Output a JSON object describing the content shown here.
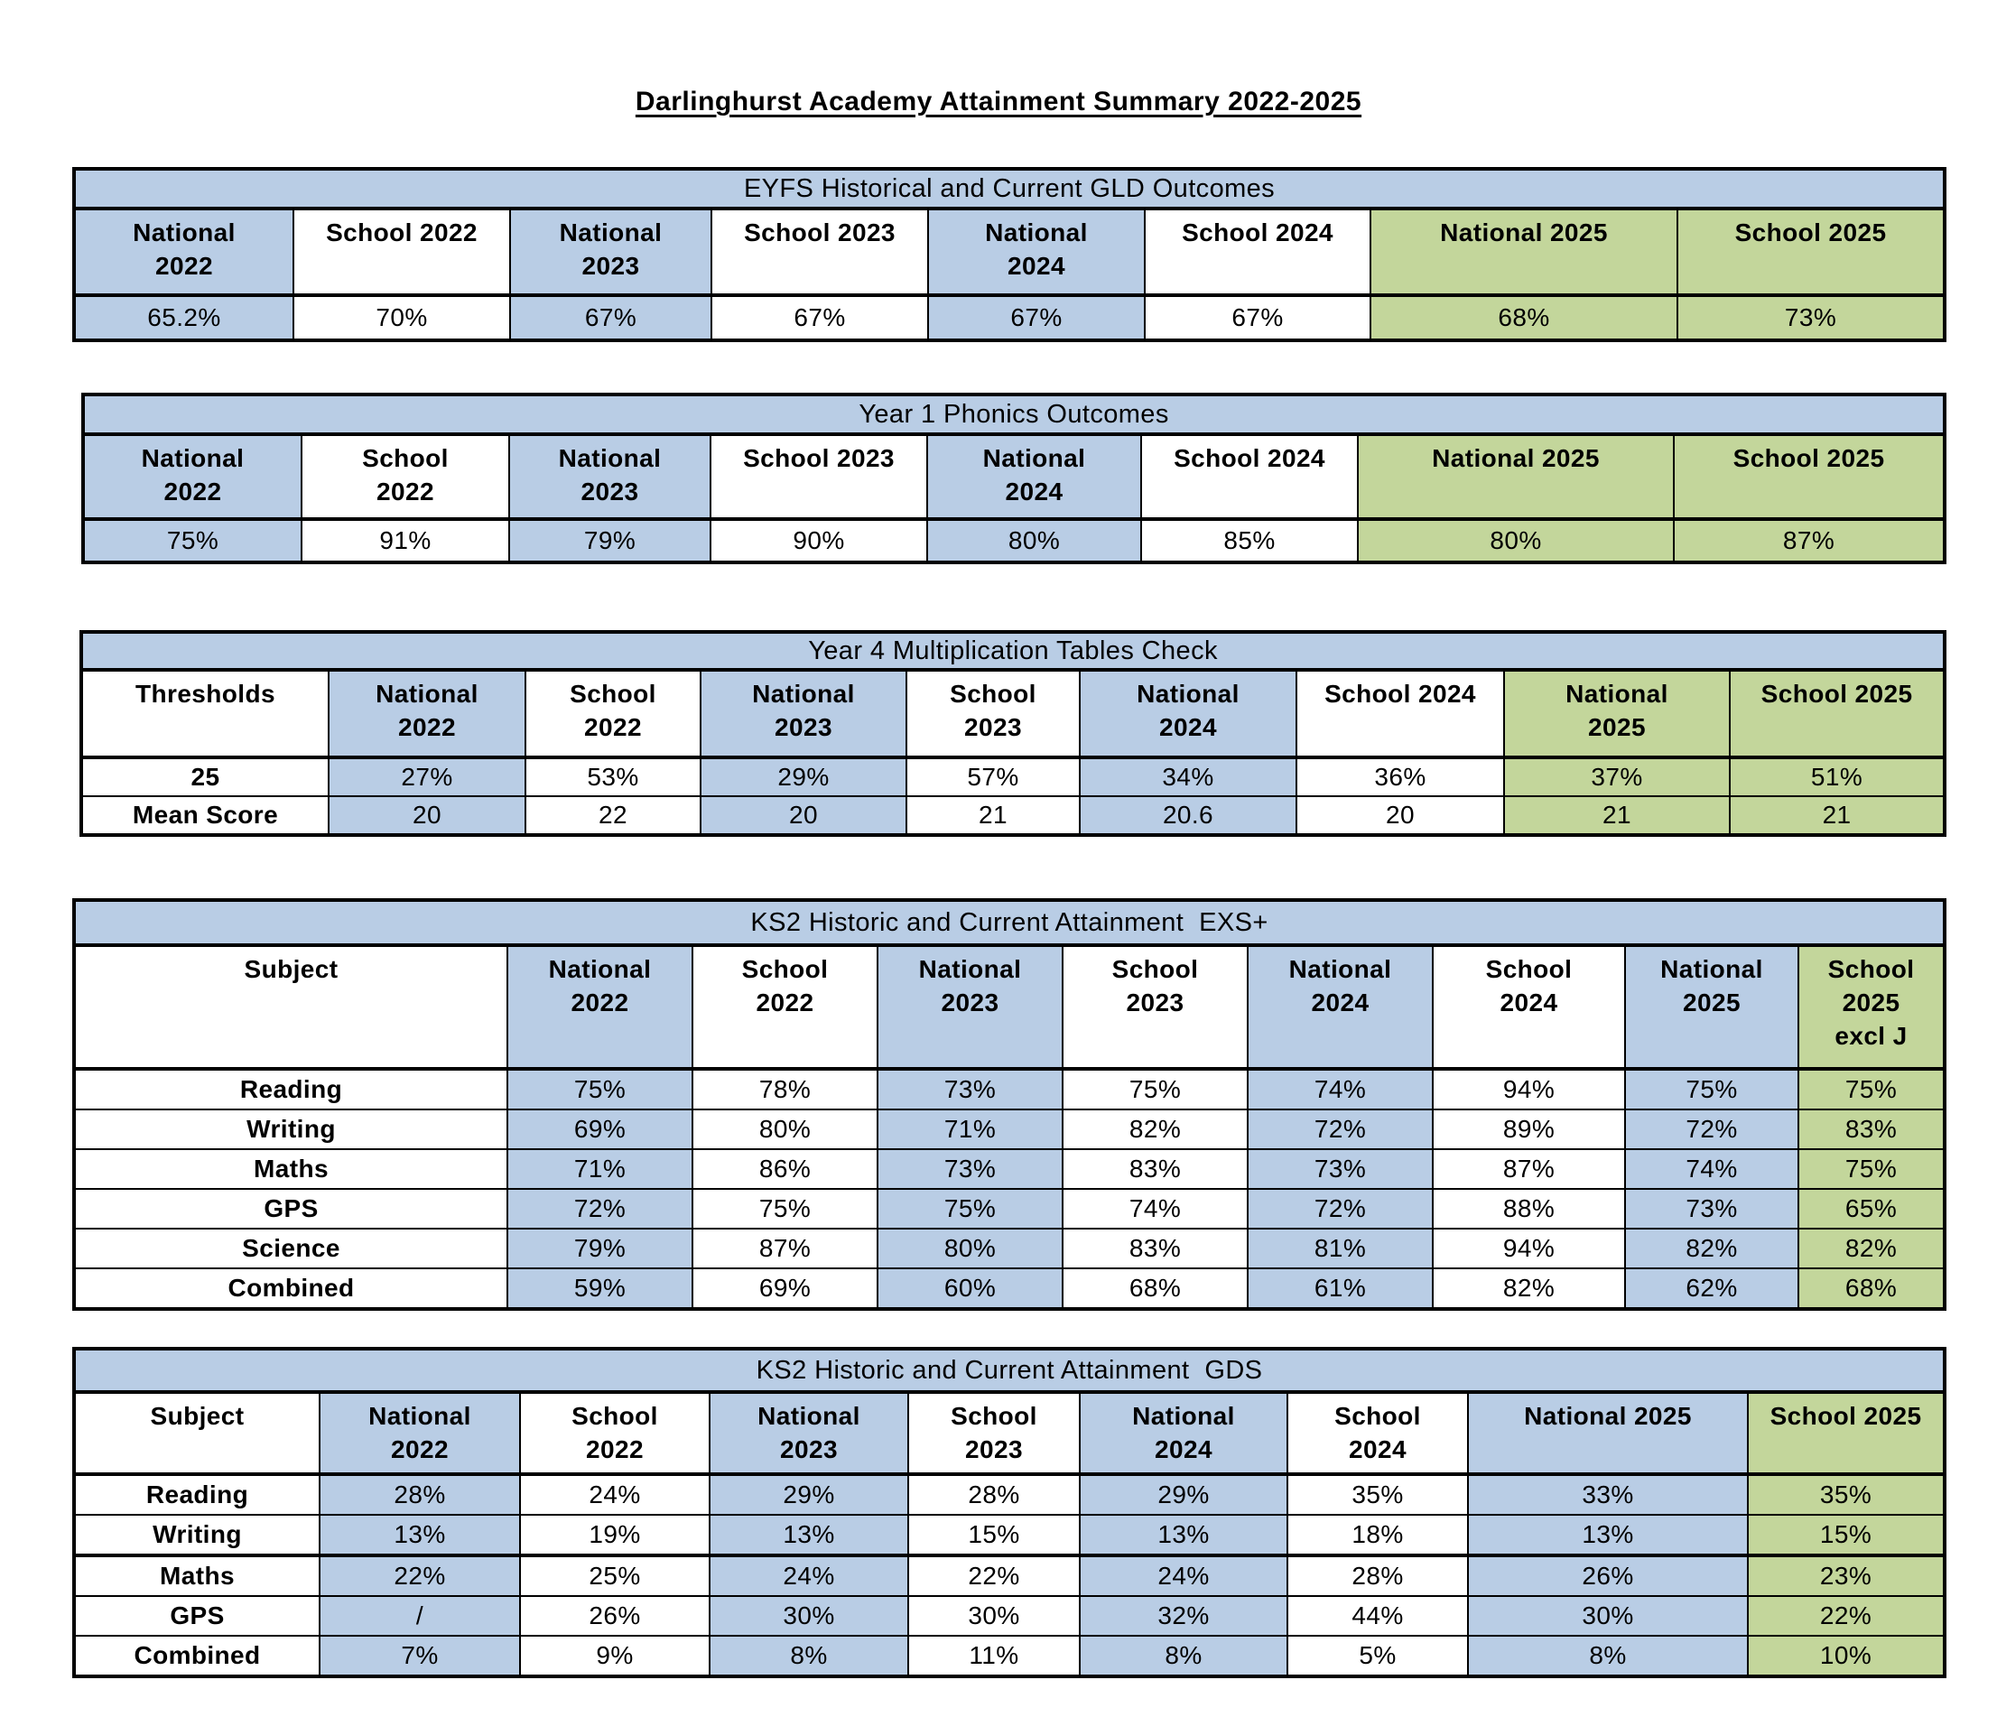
{
  "page": {
    "title": "Darlinghurst Academy Attainment Summary 2022-2025"
  },
  "colors": {
    "blue": "#B9CDE5",
    "green": "#C3D69B",
    "white": "#FFFFFF",
    "border": "#000000"
  },
  "tables": [
    {
      "name": "eyfs-gld",
      "title": "EYFS Historical and Current GLD Outcomes",
      "columns": [
        {
          "label": "National\n2022",
          "bg": "blue"
        },
        {
          "label": "School 2022",
          "bg": "white"
        },
        {
          "label": "National\n2023",
          "bg": "blue"
        },
        {
          "label": "School 2023",
          "bg": "white"
        },
        {
          "label": "National\n2024",
          "bg": "blue"
        },
        {
          "label": "School 2024",
          "bg": "white"
        },
        {
          "label": "National 2025",
          "bg": "green"
        },
        {
          "label": "School 2025",
          "bg": "green"
        }
      ],
      "rows": [
        {
          "cells": [
            "65.2%",
            "70%",
            "67%",
            "67%",
            "67%",
            "67%",
            "68%",
            "73%"
          ]
        }
      ]
    },
    {
      "name": "year1-phonics",
      "title": "Year 1 Phonics Outcomes",
      "columns": [
        {
          "label": "National\n2022",
          "bg": "blue"
        },
        {
          "label": "School\n2022",
          "bg": "white"
        },
        {
          "label": "National\n2023",
          "bg": "blue"
        },
        {
          "label": "School 2023",
          "bg": "white"
        },
        {
          "label": "National\n2024",
          "bg": "blue"
        },
        {
          "label": "School 2024",
          "bg": "white"
        },
        {
          "label": "National 2025",
          "bg": "green"
        },
        {
          "label": "School 2025",
          "bg": "green"
        }
      ],
      "rows": [
        {
          "cells": [
            "75%",
            "91%",
            "79%",
            "90%",
            "80%",
            "85%",
            "80%",
            "87%"
          ]
        }
      ]
    },
    {
      "name": "year4-multiplication-tables-check",
      "title": "Year 4 Multiplication Tables Check",
      "columns": [
        {
          "label": "Thresholds",
          "bg": "white",
          "is_label": true
        },
        {
          "label": "National\n2022",
          "bg": "blue"
        },
        {
          "label": "School\n2022",
          "bg": "white"
        },
        {
          "label": "National\n2023",
          "bg": "blue"
        },
        {
          "label": "School\n2023",
          "bg": "white"
        },
        {
          "label": "National\n2024",
          "bg": "blue"
        },
        {
          "label": "School 2024",
          "bg": "white"
        },
        {
          "label": "National\n2025",
          "bg": "green"
        },
        {
          "label": "School 2025",
          "bg": "green"
        }
      ],
      "rows": [
        {
          "cells": [
            "25",
            "27%",
            "53%",
            "29%",
            "57%",
            "34%",
            "36%",
            "37%",
            "51%"
          ]
        },
        {
          "cells": [
            "Mean Score",
            "20",
            "22",
            "20",
            "21",
            "20.6",
            "20",
            "21",
            "21"
          ]
        }
      ]
    },
    {
      "name": "ks2-attainment-exs",
      "title": "KS2 Historic and Current Attainment  EXS+",
      "columns": [
        {
          "label": "Subject",
          "bg": "white",
          "is_label": true
        },
        {
          "label": "National\n2022",
          "bg": "blue"
        },
        {
          "label": "School\n2022",
          "bg": "white"
        },
        {
          "label": "National\n2023",
          "bg": "blue"
        },
        {
          "label": "School\n2023",
          "bg": "white"
        },
        {
          "label": "National\n2024",
          "bg": "blue"
        },
        {
          "label": "School\n2024",
          "bg": "white"
        },
        {
          "label": "National\n2025",
          "bg": "blue"
        },
        {
          "label": "School\n2025\nexcl J",
          "bg": "green"
        }
      ],
      "rows": [
        {
          "cells": [
            "Reading",
            "75%",
            "78%",
            "73%",
            "75%",
            "74%",
            "94%",
            "75%",
            "75%"
          ]
        },
        {
          "cells": [
            "Writing",
            "69%",
            "80%",
            "71%",
            "82%",
            "72%",
            "89%",
            "72%",
            "83%"
          ]
        },
        {
          "cells": [
            "Maths",
            "71%",
            "86%",
            "73%",
            "83%",
            "73%",
            "87%",
            "74%",
            "75%"
          ]
        },
        {
          "cells": [
            "GPS",
            "72%",
            "75%",
            "75%",
            "74%",
            "72%",
            "88%",
            "73%",
            "65%"
          ]
        },
        {
          "cells": [
            "Science",
            "79%",
            "87%",
            "80%",
            "83%",
            "81%",
            "94%",
            "82%",
            "82%"
          ]
        },
        {
          "cells": [
            "Combined",
            "59%",
            "69%",
            "60%",
            "68%",
            "61%",
            "82%",
            "62%",
            "68%"
          ]
        }
      ]
    },
    {
      "name": "ks2-attainment-gds",
      "title": "KS2 Historic and Current Attainment  GDS",
      "columns": [
        {
          "label": "Subject",
          "bg": "white",
          "is_label": true
        },
        {
          "label": "National\n2022",
          "bg": "blue"
        },
        {
          "label": "School\n2022",
          "bg": "white"
        },
        {
          "label": "National\n2023",
          "bg": "blue"
        },
        {
          "label": "School\n2023",
          "bg": "white"
        },
        {
          "label": "National\n2024",
          "bg": "blue"
        },
        {
          "label": "School\n2024",
          "bg": "white"
        },
        {
          "label": "National 2025",
          "bg": "blue"
        },
        {
          "label": "School 2025",
          "bg": "green"
        }
      ],
      "rows": [
        {
          "cells": [
            "Reading",
            "28%",
            "24%",
            "29%",
            "28%",
            "29%",
            "35%",
            "33%",
            "35%"
          ]
        },
        {
          "cells": [
            "Writing",
            "13%",
            "19%",
            "13%",
            "15%",
            "13%",
            "18%",
            "13%",
            "15%"
          ]
        },
        {
          "cells": [
            "Maths",
            "22%",
            "25%",
            "24%",
            "22%",
            "24%",
            "28%",
            "26%",
            "23%"
          ]
        },
        {
          "cells": [
            "GPS",
            "/",
            "26%",
            "30%",
            "30%",
            "32%",
            "44%",
            "30%",
            "22%"
          ]
        },
        {
          "cells": [
            "Combined",
            "7%",
            "9%",
            "8%",
            "11%",
            "8%",
            "5%",
            "8%",
            "10%"
          ]
        }
      ]
    }
  ]
}
